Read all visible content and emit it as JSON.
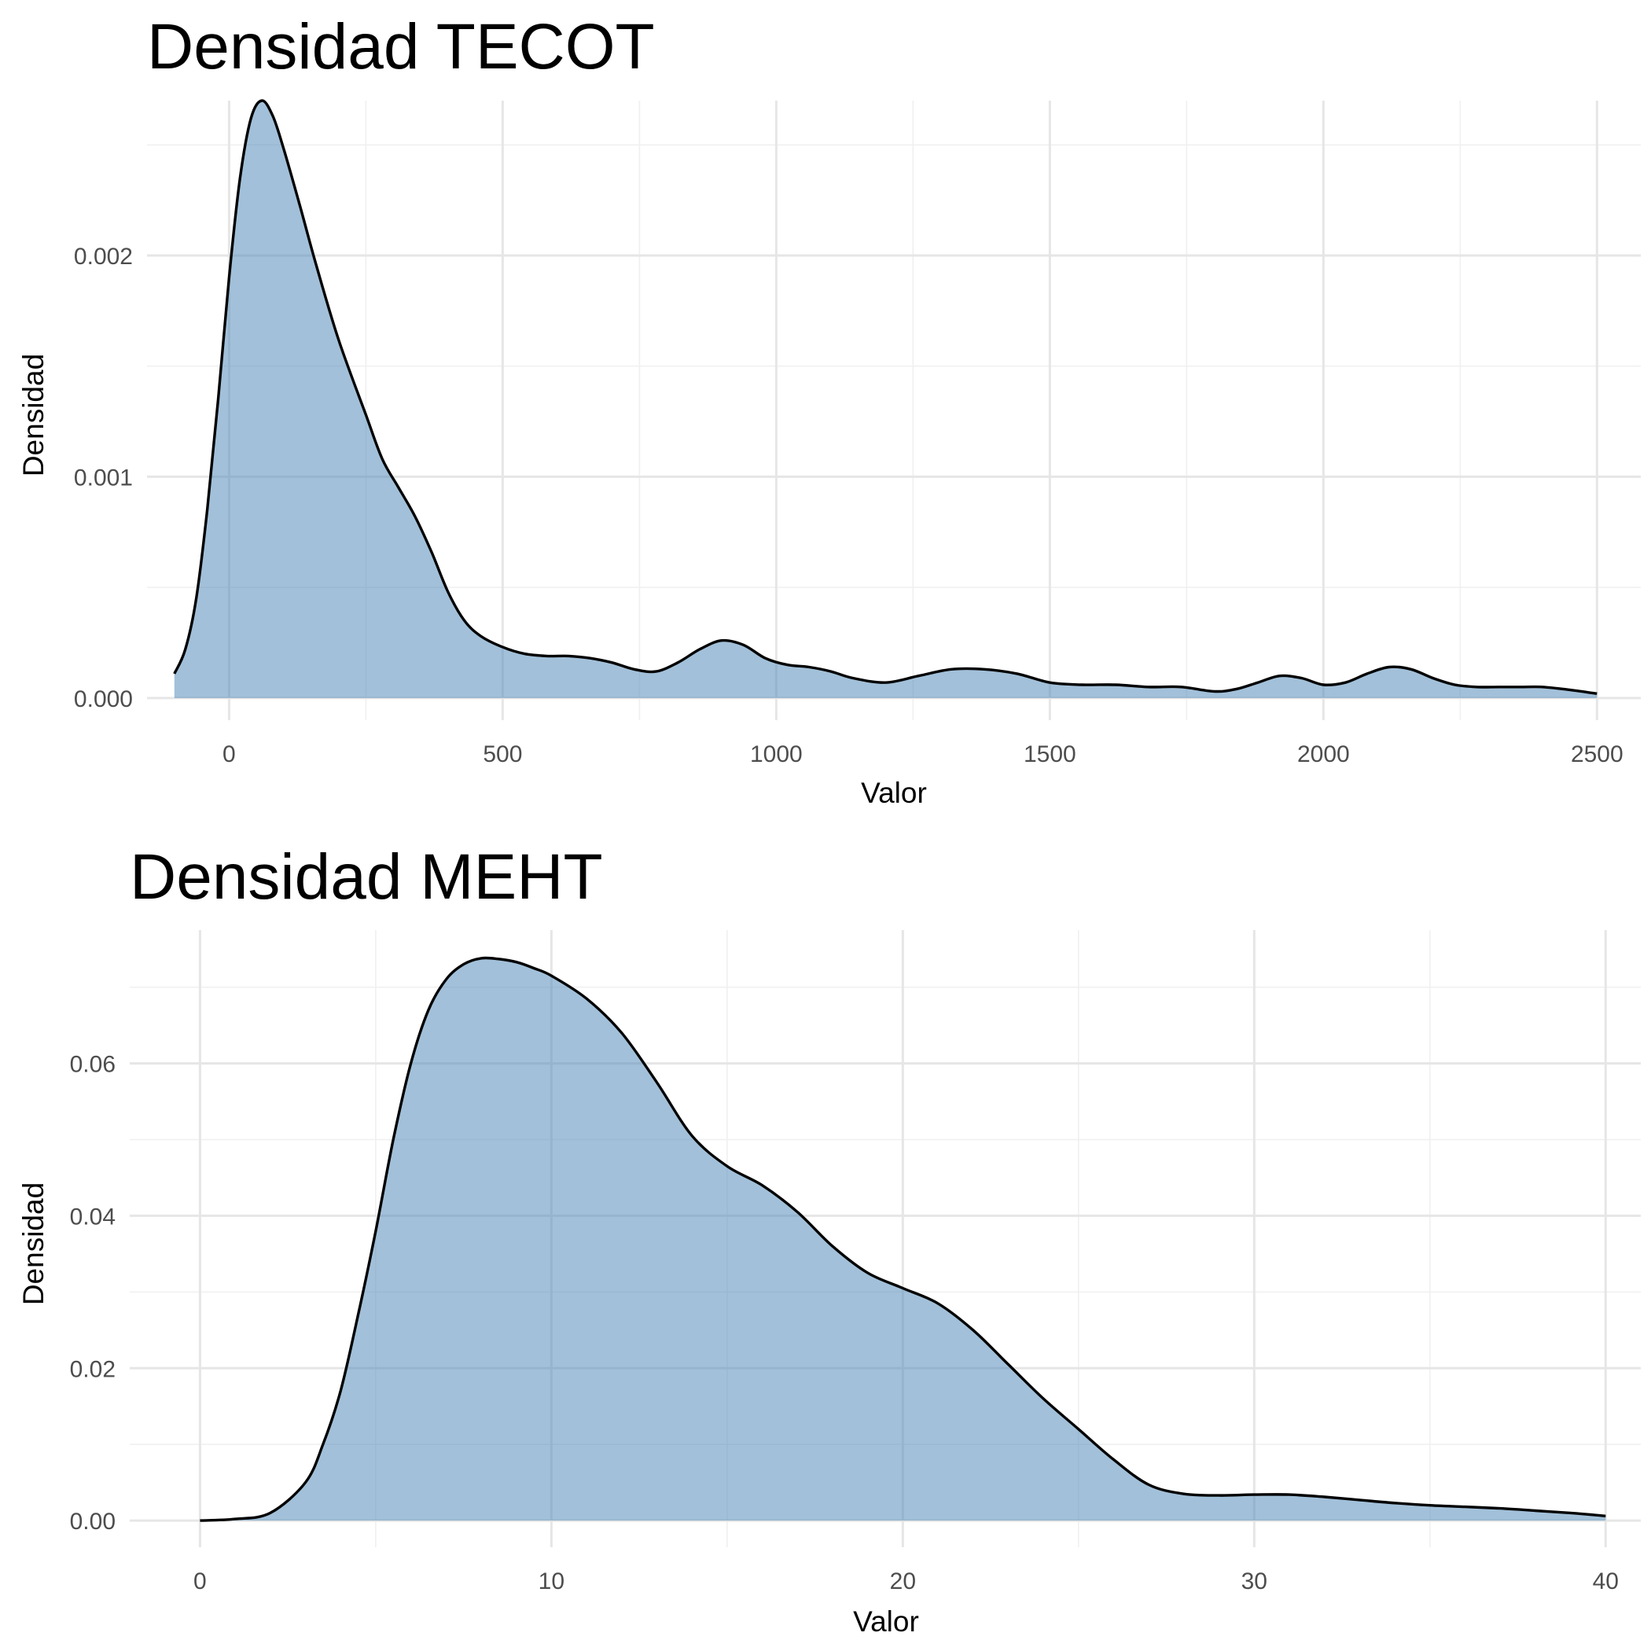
{
  "colors": {
    "fill": "#4682b4",
    "fill_opacity": 0.5,
    "line": "#000000",
    "grid": "#ebebeb",
    "background": "#ffffff"
  },
  "chart_data": [
    {
      "type": "area",
      "title": "Densidad TECOT",
      "xlabel": "Valor",
      "ylabel": "Densidad",
      "xlim": [
        -150,
        2580
      ],
      "ylim": [
        -0.0001,
        0.0027
      ],
      "xticks": [
        0,
        500,
        1000,
        1500,
        2000,
        2500
      ],
      "xtick_labels": [
        "0",
        "500",
        "1000",
        "1500",
        "2000",
        "2500"
      ],
      "yticks": [
        0.0,
        0.001,
        0.002
      ],
      "ytick_labels": [
        "0.000",
        "0.001",
        "0.002"
      ],
      "grid": true,
      "series": [
        {
          "x": [
            -100,
            -80,
            -60,
            -40,
            -20,
            0,
            20,
            40,
            60,
            80,
            100,
            130,
            160,
            200,
            250,
            280,
            310,
            340,
            370,
            400,
            430,
            460,
            500,
            540,
            580,
            620,
            660,
            700,
            740,
            780,
            820,
            860,
            900,
            940,
            980,
            1020,
            1060,
            1100,
            1140,
            1200,
            1260,
            1320,
            1380,
            1440,
            1500,
            1560,
            1620,
            1680,
            1740,
            1800,
            1840,
            1880,
            1920,
            1960,
            2000,
            2040,
            2080,
            2120,
            2160,
            2200,
            2240,
            2280,
            2320,
            2360,
            2400,
            2440,
            2500
          ],
          "y": [
            0.00011,
            0.00022,
            0.00045,
            0.00085,
            0.00135,
            0.0019,
            0.00235,
            0.00262,
            0.0027,
            0.00263,
            0.00248,
            0.00222,
            0.00195,
            0.00162,
            0.00128,
            0.00108,
            0.00095,
            0.00082,
            0.00066,
            0.00048,
            0.00035,
            0.00028,
            0.00023,
            0.0002,
            0.00019,
            0.00019,
            0.00018,
            0.00016,
            0.00013,
            0.00012,
            0.00016,
            0.00022,
            0.00026,
            0.00024,
            0.00018,
            0.00015,
            0.00014,
            0.00012,
            9e-05,
            7e-05,
            0.0001,
            0.00013,
            0.00013,
            0.00011,
            7e-05,
            6e-05,
            6e-05,
            5e-05,
            5e-05,
            3e-05,
            4e-05,
            7e-05,
            0.0001,
            9e-05,
            6e-05,
            7e-05,
            0.00011,
            0.00014,
            0.00013,
            9e-05,
            6e-05,
            5e-05,
            5e-05,
            5e-05,
            5e-05,
            4e-05,
            2e-05
          ]
        }
      ]
    },
    {
      "type": "area",
      "title": "Densidad MEHT",
      "xlabel": "Valor",
      "ylabel": "Densidad",
      "xlim": [
        -2,
        41
      ],
      "ylim": [
        -0.0035,
        0.0775
      ],
      "xticks": [
        0,
        10,
        20,
        30,
        40
      ],
      "xtick_labels": [
        "0",
        "10",
        "20",
        "30",
        "40"
      ],
      "yticks": [
        0.0,
        0.02,
        0.04,
        0.06
      ],
      "ytick_labels": [
        "0.00",
        "0.02",
        "0.04",
        "0.06"
      ],
      "grid": true,
      "series": [
        {
          "x": [
            0,
            1,
            2,
            3,
            3.5,
            4,
            4.5,
            5,
            5.5,
            6,
            6.5,
            7,
            7.5,
            8,
            8.5,
            9,
            9.5,
            10,
            11,
            12,
            13,
            14,
            15,
            16,
            17,
            18,
            19,
            20,
            21,
            22,
            23,
            24,
            25,
            26,
            27,
            28,
            29,
            30,
            31,
            32,
            33,
            34,
            35,
            36,
            37,
            38,
            39,
            40
          ],
          "y": [
            0,
            0.0002,
            0.001,
            0.005,
            0.01,
            0.017,
            0.027,
            0.038,
            0.05,
            0.06,
            0.067,
            0.071,
            0.073,
            0.0738,
            0.0737,
            0.0733,
            0.0725,
            0.0715,
            0.0685,
            0.064,
            0.0575,
            0.0505,
            0.0465,
            0.044,
            0.0405,
            0.036,
            0.0325,
            0.0305,
            0.0285,
            0.025,
            0.0205,
            0.016,
            0.012,
            0.008,
            0.0047,
            0.0035,
            0.0033,
            0.0034,
            0.0034,
            0.0031,
            0.0027,
            0.0023,
            0.002,
            0.0018,
            0.0016,
            0.0013,
            0.001,
            0.0006
          ]
        }
      ]
    }
  ]
}
